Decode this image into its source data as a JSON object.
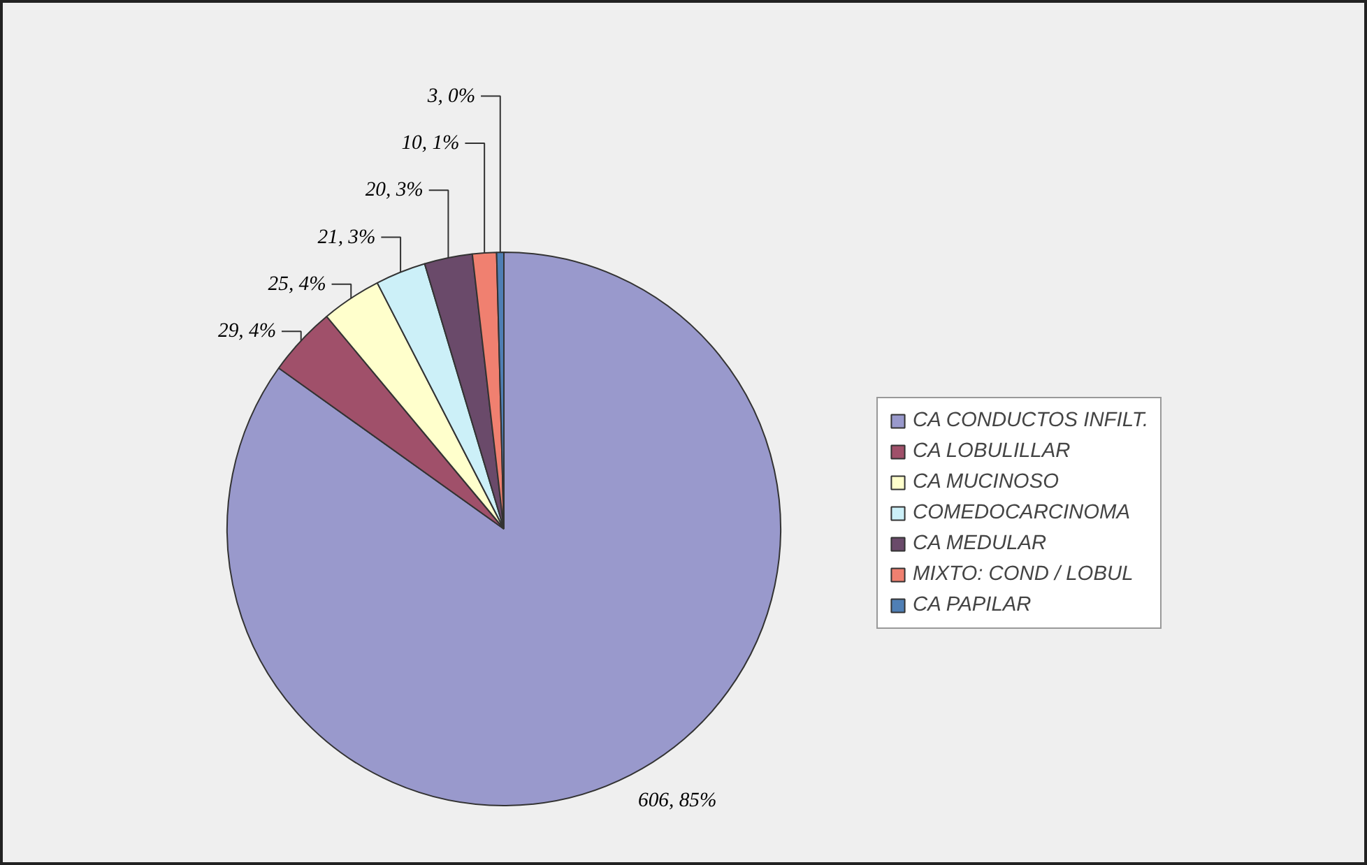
{
  "chart_data": {
    "type": "pie",
    "categories": [
      "CA CONDUCTOS INFILT.",
      "CA LOBULILLAR",
      "CA MUCINOSO",
      "COMEDOCARCINOMA",
      "CA MEDULAR",
      "MIXTO: COND / LOBUL",
      "CA PAPILAR"
    ],
    "values": [
      606,
      29,
      25,
      21,
      20,
      10,
      3
    ],
    "colors": [
      "#9999cc",
      "#a0506a",
      "#ffffcc",
      "#ccf0f8",
      "#6a4a6a",
      "#f08070",
      "#4f7fb5"
    ],
    "value_labels": [
      "606, 85%",
      "29, 4%",
      "25, 4%",
      "21, 3%",
      "20, 3%",
      "10, 1%",
      "3, 0%"
    ],
    "legend": "right"
  }
}
